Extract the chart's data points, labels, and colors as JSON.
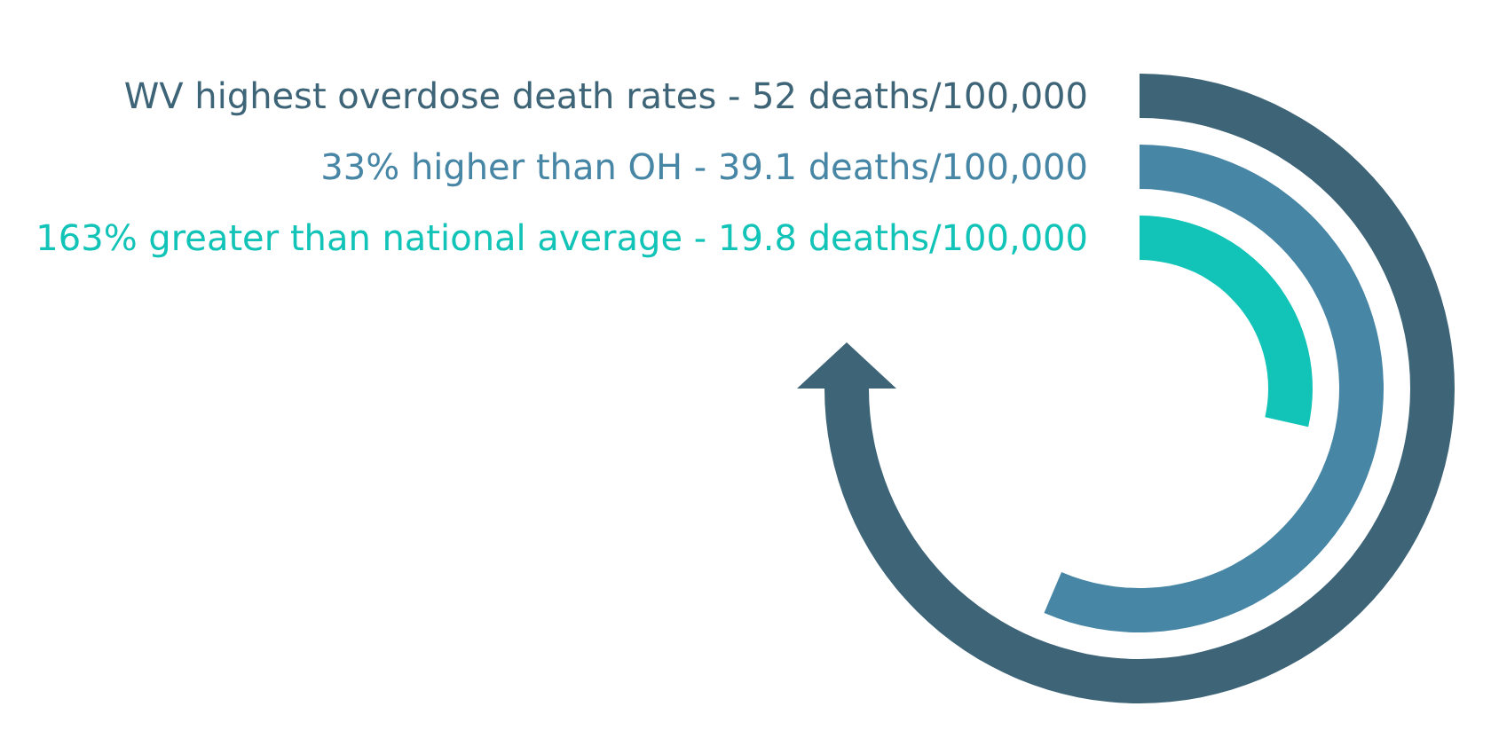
{
  "chart_data": {
    "type": "other",
    "categories": [
      "WV highest overdose death rates -",
      "33% higher than OH -",
      "163% greater than national average -"
    ],
    "values": [
      52,
      39.1,
      19.8
    ],
    "value_labels": [
      "52 deaths/100,000",
      "39.1 deaths/100,000",
      "19.8 deaths/100,000"
    ],
    "colors": [
      "#3e6477",
      "#4886a6",
      "#12c3b7"
    ]
  }
}
